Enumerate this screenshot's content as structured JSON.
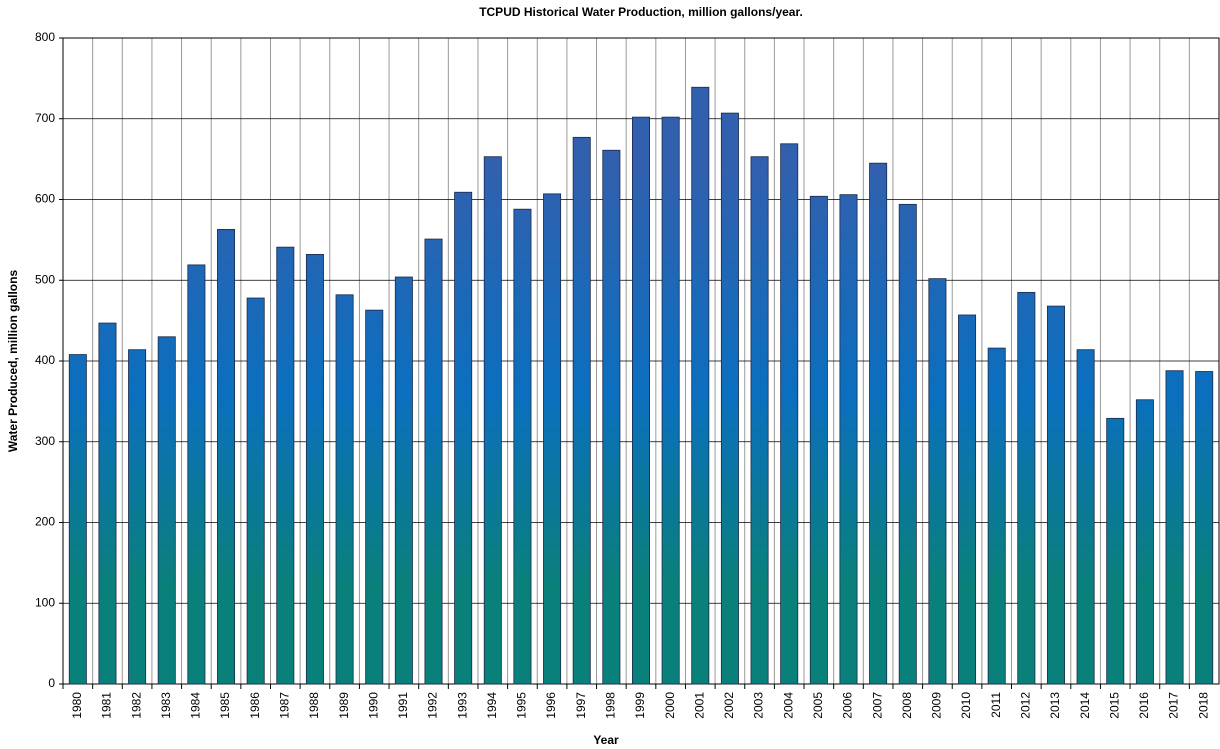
{
  "chart_data": {
    "type": "bar",
    "title": "TCPUD Historical Water Production, million  gallons/year.",
    "x_label": "Year",
    "y_label": "Water Produced, million gallons",
    "categories": [
      "1980",
      "1981",
      "1982",
      "1983",
      "1984",
      "1985",
      "1986",
      "1987",
      "1988",
      "1989",
      "1990",
      "1991",
      "1992",
      "1993",
      "1994",
      "1995",
      "1996",
      "1997",
      "1998",
      "1999",
      "2000",
      "2001",
      "2002",
      "2003",
      "2004",
      "2005",
      "2006",
      "2007",
      "2008",
      "2009",
      "2010",
      "2011",
      "2012",
      "2013",
      "2014",
      "2015",
      "2016",
      "2017",
      "2018"
    ],
    "values": [
      408,
      447,
      414,
      430,
      519,
      563,
      478,
      541,
      532,
      482,
      463,
      504,
      551,
      609,
      653,
      588,
      607,
      677,
      661,
      702,
      702,
      739,
      707,
      653,
      669,
      604,
      606,
      645,
      594,
      502,
      457,
      416,
      485,
      468,
      414,
      329,
      352,
      388,
      387
    ],
    "colors": [
      "#3160ae",
      "#0b6fbf",
      "#0a807a"
    ],
    "ylim": [
      0,
      800
    ],
    "yticks": [
      0,
      100,
      200,
      300,
      400,
      500,
      600,
      700,
      800
    ],
    "grid": true
  }
}
